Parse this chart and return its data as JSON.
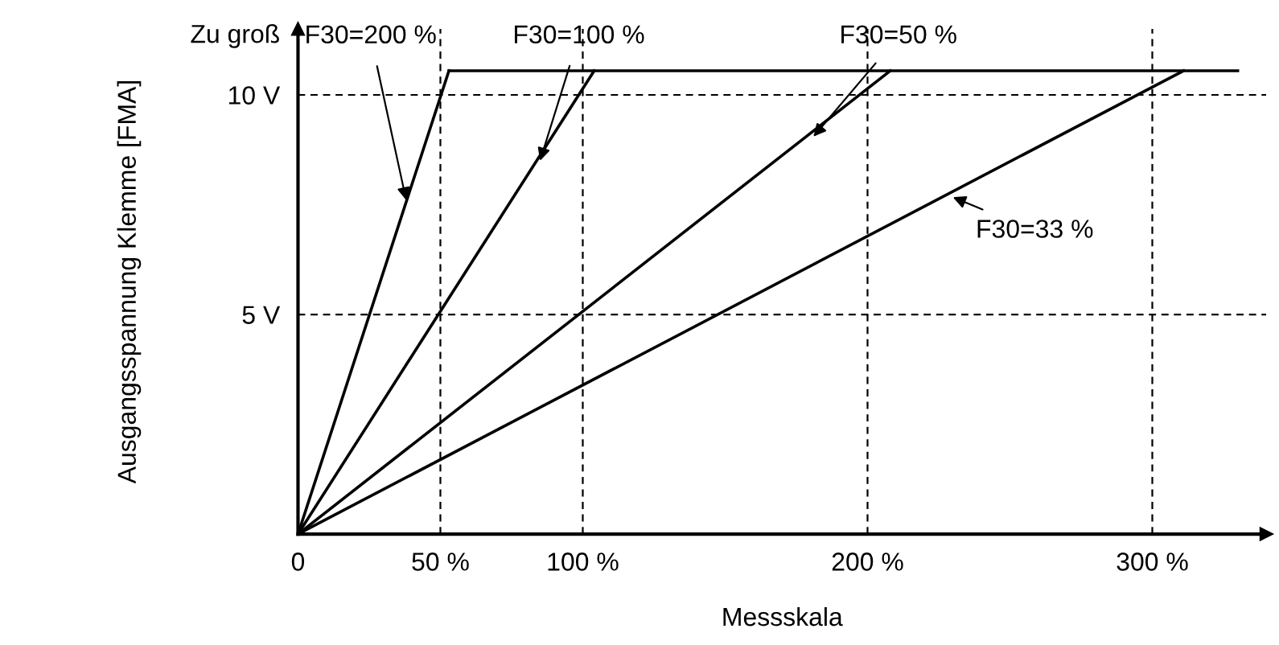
{
  "chart_data": {
    "type": "line",
    "xlabel": "Messskala",
    "ylabel": "Ausgangsspannung Klemme [FMA]",
    "xlim": [
      0,
      340
    ],
    "ylim": [
      0,
      11.5
    ],
    "xticks": [
      0,
      {
        "value": 50,
        "label": "50 %"
      },
      {
        "value": 100,
        "label": "100 %"
      },
      {
        "value": 200,
        "label": "200 %"
      },
      {
        "value": 300,
        "label": "300 %"
      }
    ],
    "yticks": [
      {
        "value": 5,
        "label": "5 V"
      },
      {
        "value": 10,
        "label": "10 V"
      },
      {
        "value": 11.4,
        "label": "Zu groß"
      }
    ],
    "series": [
      {
        "color": "#000000",
        "x": [
          0,
          53
        ],
        "values": [
          0,
          10.55
        ]
      },
      {
        "color": "#000000",
        "x": [
          0,
          104
        ],
        "values": [
          0,
          10.55
        ]
      },
      {
        "color": "#000000",
        "x": [
          0,
          208
        ],
        "values": [
          0,
          10.55
        ]
      },
      {
        "color": "#000000",
        "x": [
          0,
          311
        ],
        "values": [
          0,
          10.55
        ]
      },
      {
        "color": "#000000",
        "x": [
          53,
          330
        ],
        "values": [
          10.55,
          10.55
        ]
      }
    ],
    "ref_lines": [
      {
        "axis": "y",
        "value": 5,
        "line_style": "dashed",
        "color": "#000000"
      },
      {
        "axis": "y",
        "value": 10,
        "line_style": "dashed",
        "color": "#000000"
      },
      {
        "axis": "x",
        "value": 50,
        "line_style": "dashed",
        "color": "#000000"
      },
      {
        "axis": "x",
        "value": 100,
        "line_style": "dashed",
        "color": "#000000"
      },
      {
        "axis": "x",
        "value": 200,
        "line_style": "dashed",
        "color": "#000000"
      },
      {
        "axis": "x",
        "value": 300,
        "line_style": "dashed",
        "color": "#000000"
      }
    ],
    "annotations": [
      {
        "text": "F30=200 %",
        "x": 38,
        "y": 7.6
      },
      {
        "text": "F30=100 %",
        "x": 85,
        "y": 8.5
      },
      {
        "text": "F30=50 %",
        "x": 181,
        "y": 9.05
      },
      {
        "text": "F30=33 %",
        "x": 230,
        "y": 7.67
      }
    ],
    "grid": false,
    "legend": false,
    "marker": "none",
    "line_style": "solid"
  }
}
